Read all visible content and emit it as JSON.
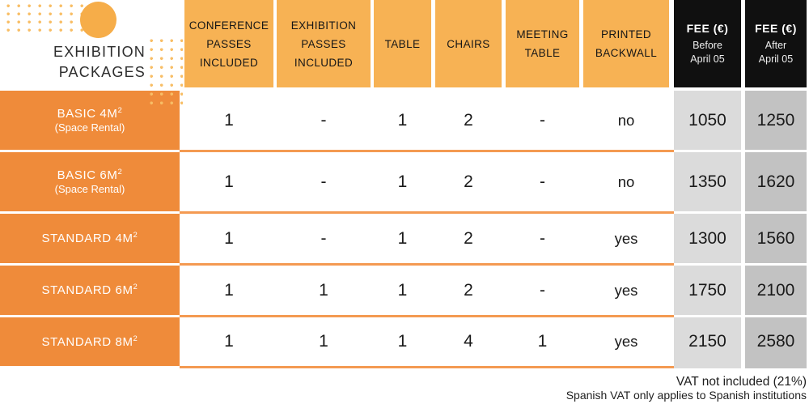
{
  "title": {
    "line1": "EXHIBITION",
    "line2": "PACKAGES"
  },
  "columns": [
    {
      "lines": [
        "CONFERENCE",
        "PASSES",
        "INCLUDED"
      ]
    },
    {
      "lines": [
        "EXHIBITION",
        "PASSES",
        "INCLUDED"
      ]
    },
    {
      "lines": [
        "TABLE"
      ]
    },
    {
      "lines": [
        "CHAIRS"
      ]
    },
    {
      "lines": [
        "MEETING",
        "TABLE"
      ]
    },
    {
      "lines": [
        "PRINTED",
        "BACKWALL"
      ]
    }
  ],
  "fee_headers": [
    {
      "title": "FEE (€)",
      "period": "Before",
      "date": "April 05"
    },
    {
      "title": "FEE (€)",
      "period": "After",
      "date": "April 05"
    }
  ],
  "rows": [
    {
      "name": "BASIC 4M",
      "sup": "2",
      "subtitle": "(Space Rental)",
      "values": [
        "1",
        "-",
        "1",
        "2",
        "-",
        "no"
      ],
      "fee_before": "1050",
      "fee_after": "1250"
    },
    {
      "name": "BASIC 6M",
      "sup": "2",
      "subtitle": "(Space Rental)",
      "values": [
        "1",
        "-",
        "1",
        "2",
        "-",
        "no"
      ],
      "fee_before": "1350",
      "fee_after": "1620"
    },
    {
      "name": "STANDARD 4M",
      "sup": "2",
      "subtitle": "",
      "values": [
        "1",
        "-",
        "1",
        "2",
        "-",
        "yes"
      ],
      "fee_before": "1300",
      "fee_after": "1560"
    },
    {
      "name": "STANDARD 6M",
      "sup": "2",
      "subtitle": "",
      "values": [
        "1",
        "1",
        "1",
        "2",
        "-",
        "yes"
      ],
      "fee_before": "1750",
      "fee_after": "2100"
    },
    {
      "name": "STANDARD 8M",
      "sup": "2",
      "subtitle": "",
      "values": [
        "1",
        "1",
        "1",
        "4",
        "1",
        "yes"
      ],
      "fee_before": "2150",
      "fee_after": "2580"
    }
  ],
  "footer": {
    "line1": "VAT not included (21%)",
    "line2": "Spanish VAT only applies to Spanish institutions"
  },
  "colors": {
    "header_orange": "#F7B254",
    "row_label_orange": "#EF8B3A",
    "separator_orange": "#F49A52",
    "dot_orange": "#F8BE66",
    "circle_orange": "#F6AD49",
    "fee_header_black": "#101010",
    "fee_before_gray": "#DBDBDB",
    "fee_after_gray": "#C2C2C2",
    "text_dark": "#1a1a1a"
  },
  "chart_data": {
    "type": "table",
    "title": "EXHIBITION PACKAGES",
    "columns": [
      "Package",
      "Conference passes included",
      "Exhibition passes included",
      "Table",
      "Chairs",
      "Meeting table",
      "Printed backwall",
      "Fee (€) Before April 05",
      "Fee (€) After April 05"
    ],
    "rows": [
      [
        "BASIC 4M2 (Space Rental)",
        "1",
        "-",
        "1",
        "2",
        "-",
        "no",
        "1050",
        "1250"
      ],
      [
        "BASIC 6M2 (Space Rental)",
        "1",
        "-",
        "1",
        "2",
        "-",
        "no",
        "1350",
        "1620"
      ],
      [
        "STANDARD 4M2",
        "1",
        "-",
        "1",
        "2",
        "-",
        "yes",
        "1300",
        "1560"
      ],
      [
        "STANDARD 6M2",
        "1",
        "1",
        "1",
        "2",
        "-",
        "yes",
        "1750",
        "2100"
      ],
      [
        "STANDARD 8M2",
        "1",
        "1",
        "1",
        "4",
        "1",
        "yes",
        "2150",
        "2580"
      ]
    ],
    "notes": [
      "VAT not included (21%)",
      "Spanish VAT only applies to Spanish institutions"
    ]
  }
}
